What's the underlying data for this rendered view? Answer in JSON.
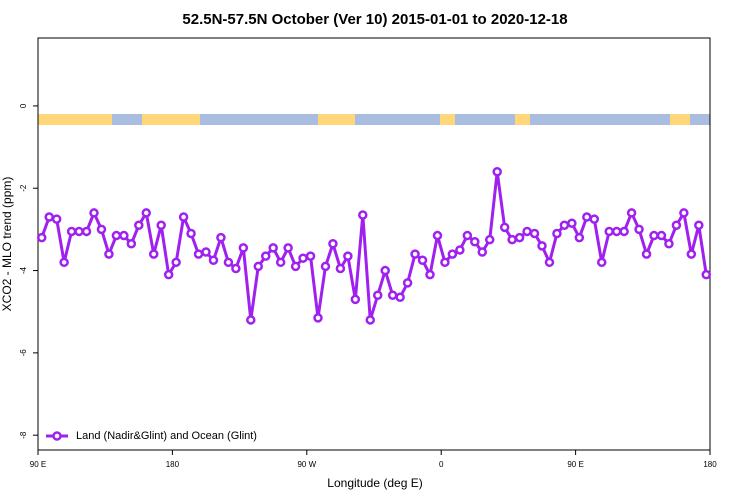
{
  "chart_data": {
    "type": "line",
    "title": "52.5N-57.5N October (Ver 10)   2015-01-01 to 2020-12-18",
    "xlabel": "Longitude (deg E)",
    "ylabel": "XCO2 - MLO trend (ppm)",
    "x": [
      92.5,
      97.5,
      102.5,
      107.5,
      112.5,
      117.5,
      122.5,
      127.5,
      132.5,
      137.5,
      142.5,
      147.5,
      152.5,
      157.5,
      162.5,
      167.5,
      172.5,
      177.5,
      182.5,
      187.5,
      192.5,
      197.5,
      202.5,
      207.5,
      212.5,
      217.5,
      222.5,
      227.5,
      232.5,
      237.5,
      242.5,
      247.5,
      252.5,
      257.5,
      262.5,
      267.5,
      272.5,
      277.5,
      282.5,
      287.5,
      292.5,
      297.5,
      302.5,
      307.5,
      312.5,
      317.5,
      322.5,
      327.5,
      332.5,
      337.5,
      342.5,
      347.5,
      352.5,
      357.5,
      362.5,
      367.5,
      372.5,
      377.5,
      382.5,
      387.5,
      392.5,
      397.5,
      402.5,
      407.5,
      412.5,
      417.5,
      422.5,
      427.5,
      432.5,
      437.5,
      442.5,
      447.5,
      452.5,
      457.5,
      462.5,
      467.5,
      472.5,
      477.5,
      482.5,
      487.5,
      492.5,
      497.5,
      502.5,
      507.5,
      512.5,
      517.5,
      522.5,
      527.5,
      532.5,
      537.5
    ],
    "series": [
      {
        "name": "Land (Nadir&Glint) and Ocean (Glint)",
        "color": "#a020f0",
        "values": [
          -3.2,
          -2.7,
          -2.75,
          -3.8,
          -3.05,
          -3.05,
          -3.05,
          -2.6,
          -3.0,
          -3.6,
          -3.15,
          -3.15,
          -3.35,
          -2.9,
          -2.6,
          -3.6,
          -2.9,
          -4.1,
          -3.8,
          -2.7,
          -3.1,
          -3.6,
          -3.55,
          -3.75,
          -3.2,
          -3.8,
          -3.95,
          -3.45,
          -5.2,
          -3.9,
          -3.65,
          -3.45,
          -3.8,
          -3.45,
          -3.9,
          -3.7,
          -3.65,
          -5.15,
          -3.9,
          -3.35,
          -3.95,
          -3.65,
          -4.7,
          -2.65,
          -5.2,
          -4.6,
          -4.0,
          -4.6,
          -4.65,
          -4.3,
          -3.6,
          -3.75,
          -4.1,
          -3.15,
          -3.8,
          -3.6,
          -3.5,
          -3.15,
          -3.3,
          -3.55,
          -3.25,
          -1.6,
          -2.95,
          -3.25,
          -3.2,
          -3.05,
          -3.1,
          -3.4,
          -3.8,
          -3.1,
          -2.9,
          -2.85,
          -3.2,
          -2.7,
          -2.75,
          -3.8,
          -3.05,
          -3.05,
          -3.05,
          -2.6,
          -3.0,
          -3.6,
          -3.15,
          -3.15,
          -3.35,
          -2.9,
          -2.6,
          -3.6,
          -2.9,
          -4.1
        ]
      }
    ],
    "xlim": [
      90,
      540
    ],
    "xticks": [
      {
        "value": 90,
        "label": "90 E"
      },
      180,
      {
        "value": 270,
        "label": "90 W"
      },
      {
        "value": 360,
        "label": "0"
      },
      {
        "value": 450,
        "label": "90 E"
      },
      {
        "value": 540,
        "label": "180"
      }
    ],
    "ylim": [
      -8.36,
      1.65
    ],
    "yticks": [
      0,
      -2,
      -4,
      -6,
      -8
    ],
    "legend": "bottomleft"
  }
}
